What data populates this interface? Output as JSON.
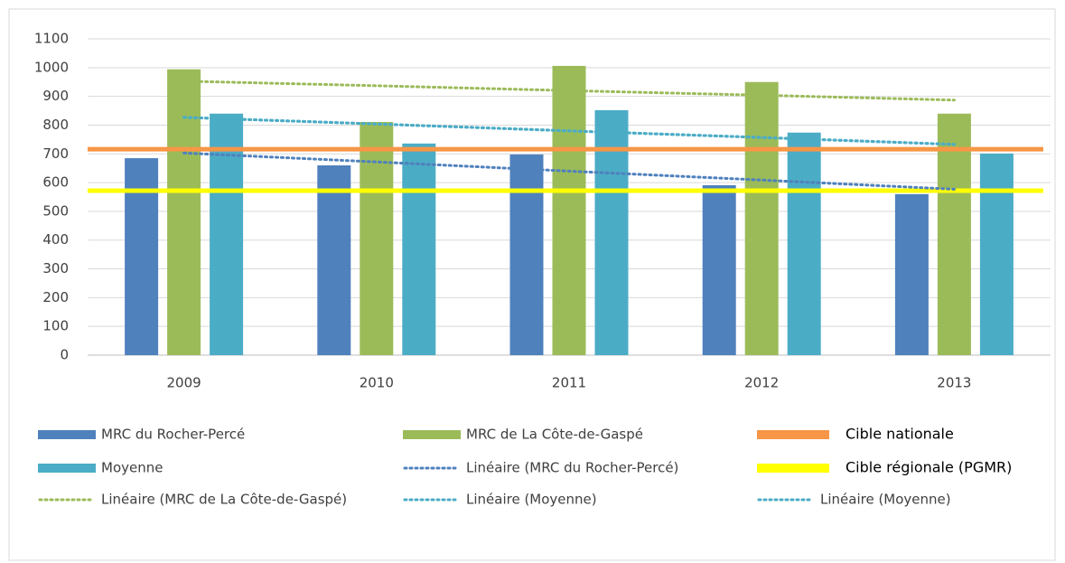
{
  "chart_data": {
    "type": "bar",
    "categories": [
      "2009",
      "2010",
      "2011",
      "2012",
      "2013"
    ],
    "ylim": [
      0,
      1100
    ],
    "yticks": [
      0,
      100,
      200,
      300,
      400,
      500,
      600,
      700,
      800,
      900,
      1000,
      1100
    ],
    "grid": true,
    "series": [
      {
        "name": "MRC du Rocher-Percé",
        "type": "bar",
        "color": "#4f81bd",
        "values": [
          685,
          660,
          698,
          591,
          560
        ]
      },
      {
        "name": "MRC de La Côte-de-Gaspé",
        "type": "bar",
        "color": "#9bbb59",
        "values": [
          994,
          811,
          1006,
          950,
          840
        ]
      },
      {
        "name": "Moyenne",
        "type": "bar",
        "color": "#4bacc6",
        "values": [
          840,
          736,
          852,
          774,
          701
        ]
      },
      {
        "name": "Linéaire (MRC du Rocher-Percé)",
        "type": "line",
        "color": "#4f81bd",
        "values": [
          703,
          672,
          640,
          609,
          577
        ]
      },
      {
        "name": "Linéaire (MRC de La Côte-de-Gaspé)",
        "type": "line",
        "color": "#9bbb59",
        "values": [
          953,
          937,
          920,
          904,
          887
        ]
      },
      {
        "name": "Linéaire (Moyenne)",
        "type": "line",
        "color": "#4bacc6",
        "values": [
          827,
          804,
          780,
          757,
          733
        ]
      },
      {
        "name": "Linéaire (Moyenne)",
        "type": "line",
        "color": "#4bacc6",
        "values": [
          827,
          804,
          780,
          757,
          733
        ]
      }
    ],
    "reference_lines": [
      {
        "name": "Cible nationale",
        "color": "#f79646",
        "value": 716
      },
      {
        "name": "Cible régionale (PGMR)",
        "color": "#ffff00",
        "value": 572
      }
    ]
  }
}
